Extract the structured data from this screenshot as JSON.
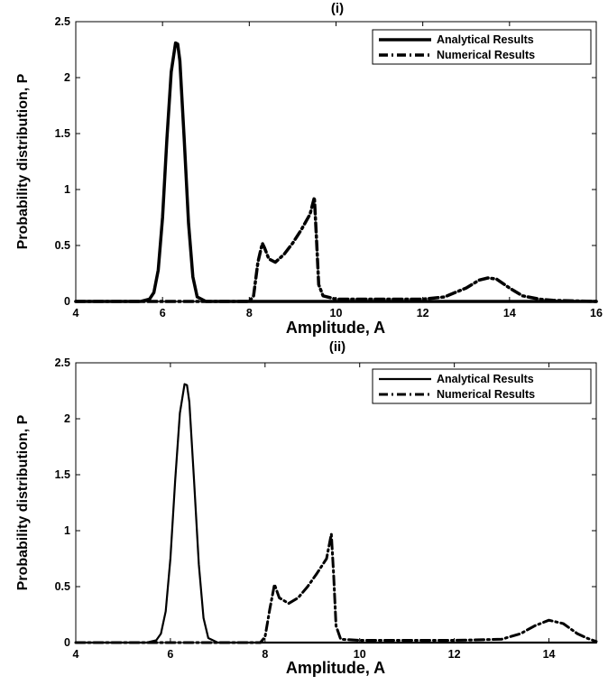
{
  "chart_data": [
    {
      "type": "line",
      "title": "(i)",
      "xlabel": "Amplitude, A",
      "ylabel": "Probability distribution, P",
      "xlim": [
        4,
        16
      ],
      "ylim": [
        0,
        2.5
      ],
      "xticks": [
        "4",
        "6",
        "8",
        "10",
        "12",
        "14",
        "16"
      ],
      "yticks": [
        "0",
        "0.5",
        "1",
        "1.5",
        "2",
        "2.5"
      ],
      "legend_position": "top-right",
      "series": [
        {
          "name": "Analytical Results",
          "style": "solid",
          "x": [
            4.0,
            5.5,
            5.7,
            5.8,
            5.9,
            6.0,
            6.1,
            6.2,
            6.3,
            6.35,
            6.4,
            6.5,
            6.6,
            6.7,
            6.8,
            7.0,
            16.0
          ],
          "y": [
            0.0,
            0.0,
            0.02,
            0.08,
            0.28,
            0.75,
            1.45,
            2.05,
            2.31,
            2.3,
            2.15,
            1.45,
            0.7,
            0.22,
            0.04,
            0.0,
            0.0
          ]
        },
        {
          "name": "Numerical Results",
          "style": "dash-dot",
          "x": [
            4.0,
            8.0,
            8.1,
            8.2,
            8.3,
            8.35,
            8.45,
            8.6,
            8.8,
            9.0,
            9.2,
            9.4,
            9.5,
            9.55,
            9.6,
            9.7,
            10.0,
            11.0,
            12.0,
            12.5,
            13.0,
            13.3,
            13.5,
            13.7,
            14.0,
            14.3,
            14.7,
            15.0,
            16.0
          ],
          "y": [
            0.0,
            0.0,
            0.05,
            0.35,
            0.52,
            0.48,
            0.38,
            0.35,
            0.42,
            0.52,
            0.64,
            0.78,
            0.93,
            0.55,
            0.15,
            0.05,
            0.02,
            0.02,
            0.02,
            0.04,
            0.12,
            0.19,
            0.21,
            0.2,
            0.12,
            0.05,
            0.02,
            0.01,
            0.0
          ]
        }
      ]
    },
    {
      "type": "line",
      "title": "(ii)",
      "xlabel": "Amplitude, A",
      "ylabel": "Probability distribution, P",
      "xlim": [
        4,
        15
      ],
      "ylim": [
        0,
        2.5
      ],
      "xticks": [
        "4",
        "6",
        "8",
        "10",
        "12",
        "14"
      ],
      "yticks": [
        "0",
        "0.5",
        "1",
        "1.5",
        "2",
        "2.5"
      ],
      "legend_position": "top-right",
      "series": [
        {
          "name": "Analytical Results",
          "style": "solid",
          "x": [
            4.0,
            5.5,
            5.7,
            5.8,
            5.9,
            6.0,
            6.1,
            6.2,
            6.3,
            6.35,
            6.4,
            6.5,
            6.6,
            6.7,
            6.8,
            7.0,
            15.0
          ],
          "y": [
            0.0,
            0.0,
            0.02,
            0.08,
            0.28,
            0.75,
            1.45,
            2.05,
            2.31,
            2.3,
            2.15,
            1.45,
            0.7,
            0.22,
            0.04,
            0.0,
            0.0
          ]
        },
        {
          "name": "Numerical Results",
          "style": "dash-dot",
          "x": [
            4.0,
            7.9,
            8.0,
            8.1,
            8.2,
            8.3,
            8.5,
            8.7,
            8.9,
            9.1,
            9.3,
            9.4,
            9.45,
            9.5,
            9.6,
            10.0,
            11.0,
            12.0,
            13.0,
            13.4,
            13.7,
            14.0,
            14.3,
            14.6,
            14.8,
            15.0
          ],
          "y": [
            0.0,
            0.0,
            0.05,
            0.3,
            0.52,
            0.4,
            0.35,
            0.4,
            0.5,
            0.62,
            0.75,
            0.97,
            0.6,
            0.15,
            0.03,
            0.02,
            0.02,
            0.02,
            0.03,
            0.08,
            0.15,
            0.2,
            0.17,
            0.08,
            0.04,
            0.01
          ]
        }
      ]
    }
  ]
}
